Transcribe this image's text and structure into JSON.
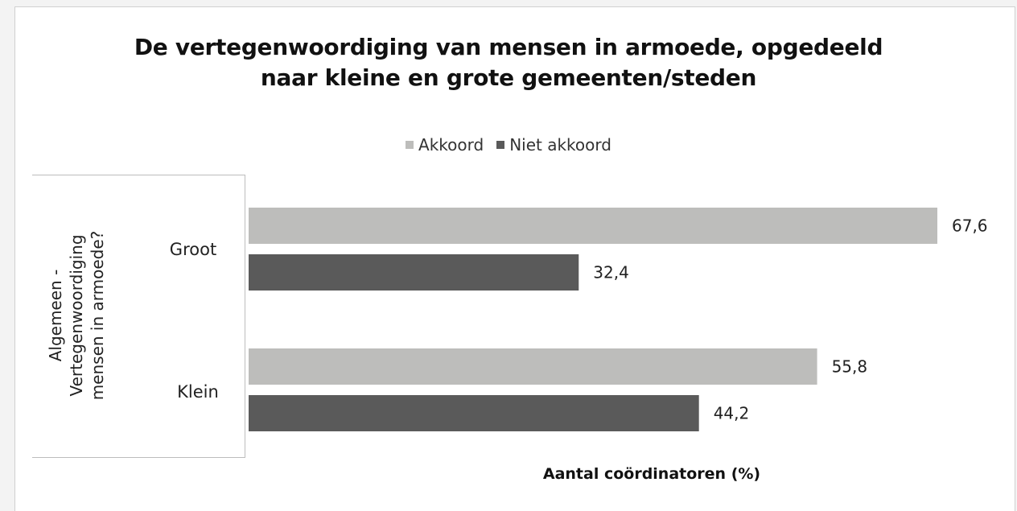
{
  "chart_data": {
    "type": "bar",
    "orientation": "horizontal",
    "title_lines": [
      "De vertegenwoordiging van mensen in armoede, opgedeeld",
      "naar kleine en grote gemeenten/steden"
    ],
    "group_label_lines": [
      "Algemeen -",
      "Vertegenwoordiging",
      "mensen in armoede?"
    ],
    "categories": [
      "Groot",
      "Klein"
    ],
    "series": [
      {
        "name": "Akkoord",
        "values": [
          67.6,
          55.8
        ],
        "labels": [
          "67,6",
          "55,8"
        ],
        "color": "#bdbdbb"
      },
      {
        "name": "Niet akkoord",
        "values": [
          32.4,
          44.2
        ],
        "labels": [
          "32,4",
          "44,2"
        ],
        "color": "#5a5a5a"
      }
    ],
    "xlabel": "Aantal coördinatoren (%)",
    "xlim": [
      0,
      67.6
    ],
    "legend_position": "top-center",
    "grid": false,
    "axis_ticks_shown": false
  }
}
